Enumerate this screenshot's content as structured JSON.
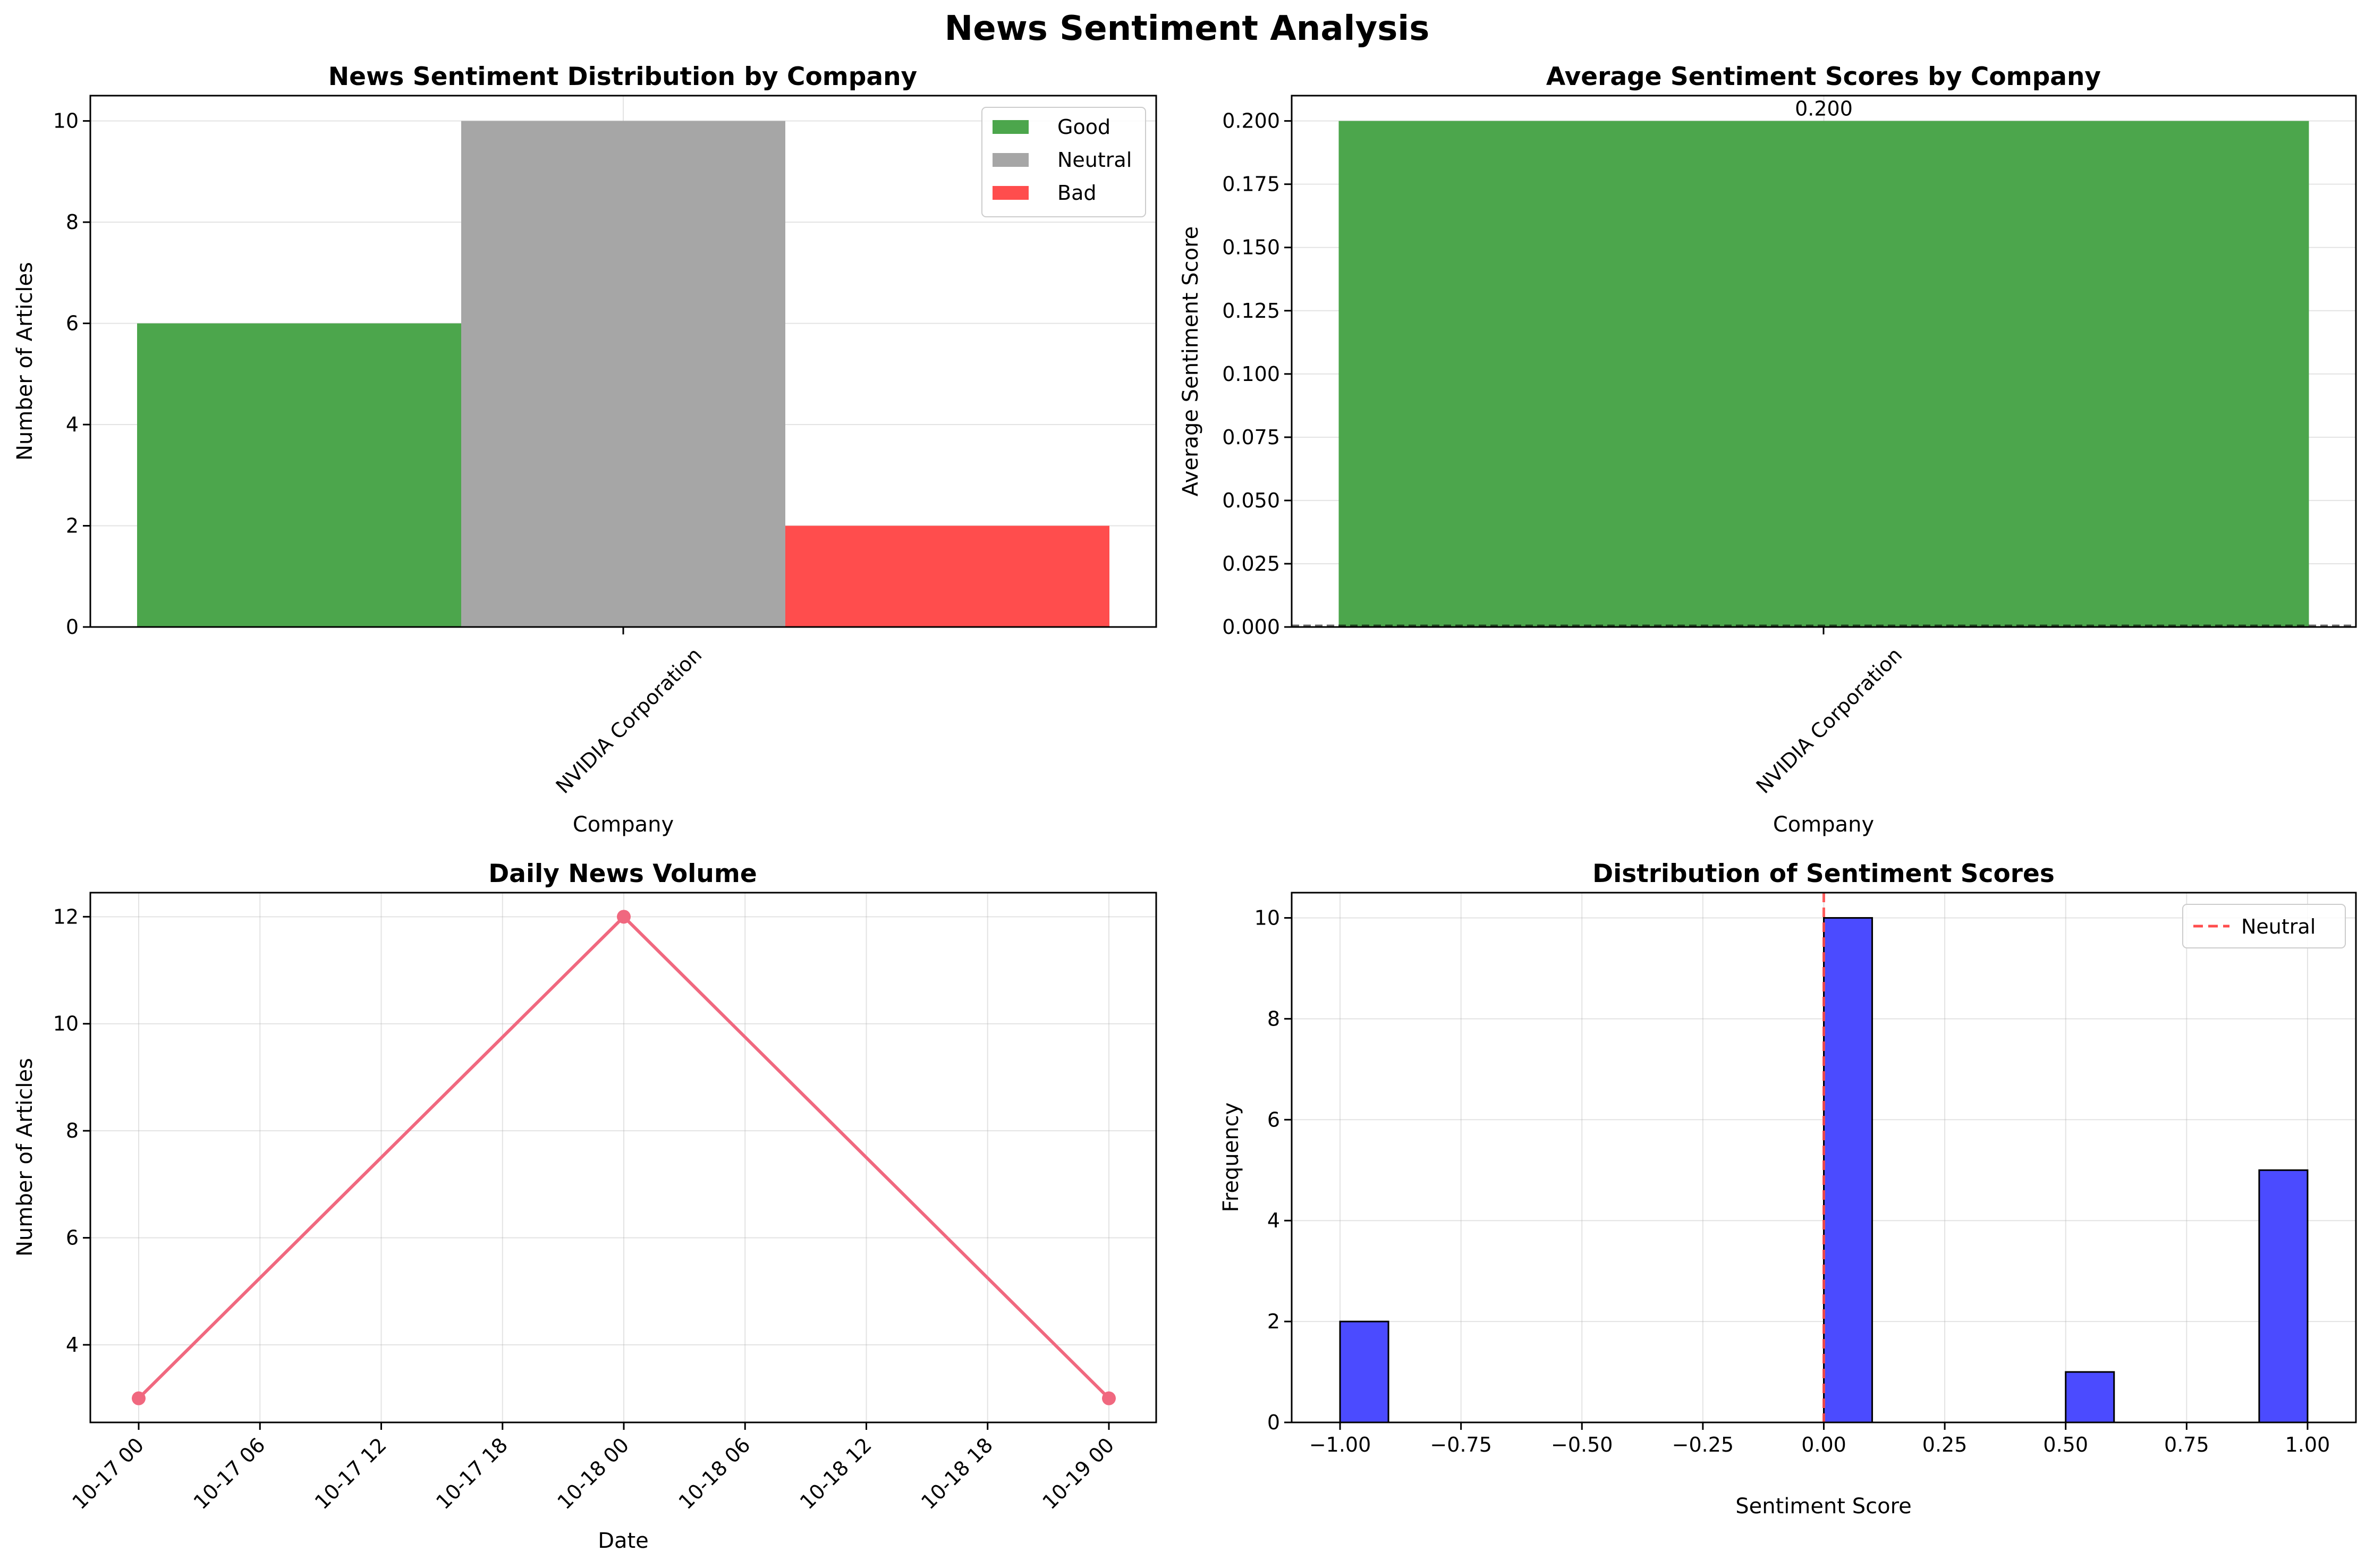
{
  "figure": {
    "title": "News Sentiment Analysis"
  },
  "chart_data": [
    {
      "type": "bar",
      "title": "News Sentiment Distribution by Company",
      "xlabel": "Company",
      "ylabel": "Number of Articles",
      "categories": [
        "NVIDIA Corporation"
      ],
      "series": [
        {
          "name": "Good",
          "values": [
            6
          ],
          "color": "#4ca64c"
        },
        {
          "name": "Neutral",
          "values": [
            10
          ],
          "color": "#a6a6a6"
        },
        {
          "name": "Bad",
          "values": [
            2
          ],
          "color": "#ff4d4d"
        }
      ],
      "ylim": [
        0,
        10.5
      ],
      "yticks": [
        "0",
        "2",
        "4",
        "6",
        "8",
        "10"
      ],
      "grid": true,
      "legend": "upper right"
    },
    {
      "type": "bar",
      "title": "Average Sentiment Scores by Company",
      "xlabel": "Company",
      "ylabel": "Average Sentiment Score",
      "categories": [
        "NVIDIA Corporation"
      ],
      "values": [
        0.2
      ],
      "value_labels": [
        "0.200"
      ],
      "color": "#4ca64c",
      "ylim": [
        0,
        0.21
      ],
      "yticks": [
        "0.000",
        "0.025",
        "0.050",
        "0.075",
        "0.100",
        "0.125",
        "0.150",
        "0.175",
        "0.200"
      ],
      "reference_line": 0,
      "grid": true
    },
    {
      "type": "line",
      "title": "Daily News Volume",
      "xlabel": "Date",
      "ylabel": "Number of Articles",
      "x": [
        "10-17 00",
        "10-18 00",
        "10-19 00"
      ],
      "values": [
        3,
        12,
        3
      ],
      "color": "#f0687f",
      "xticks": [
        "10-17 00",
        "10-17 06",
        "10-17 12",
        "10-17 18",
        "10-18 00",
        "10-18 06",
        "10-18 12",
        "10-18 18",
        "10-19 00"
      ],
      "ylim": [
        2.55,
        12.45
      ],
      "yticks": [
        "4",
        "6",
        "8",
        "10",
        "12"
      ],
      "grid": true
    },
    {
      "type": "histogram",
      "title": "Distribution of Sentiment Scores",
      "xlabel": "Sentiment Score",
      "ylabel": "Frequency",
      "bins": [
        {
          "from": -1.0,
          "to": -0.9,
          "count": 2
        },
        {
          "from": 0.0,
          "to": 0.1,
          "count": 10
        },
        {
          "from": 0.5,
          "to": 0.6,
          "count": 1
        },
        {
          "from": 0.9,
          "to": 1.0,
          "count": 5
        }
      ],
      "color": "#4b4bff",
      "xlim": [
        -1.1,
        1.1
      ],
      "ylim": [
        0,
        10.5
      ],
      "xticks": [
        "−1.00",
        "−0.75",
        "−0.50",
        "−0.25",
        "0.00",
        "0.25",
        "0.50",
        "0.75",
        "1.00"
      ],
      "yticks": [
        "0",
        "2",
        "4",
        "6",
        "8",
        "10"
      ],
      "reference_line": {
        "x": 0,
        "name": "Neutral",
        "color": "#ff4d4d",
        "style": "dashed"
      },
      "grid": true,
      "legend": "upper right"
    }
  ]
}
